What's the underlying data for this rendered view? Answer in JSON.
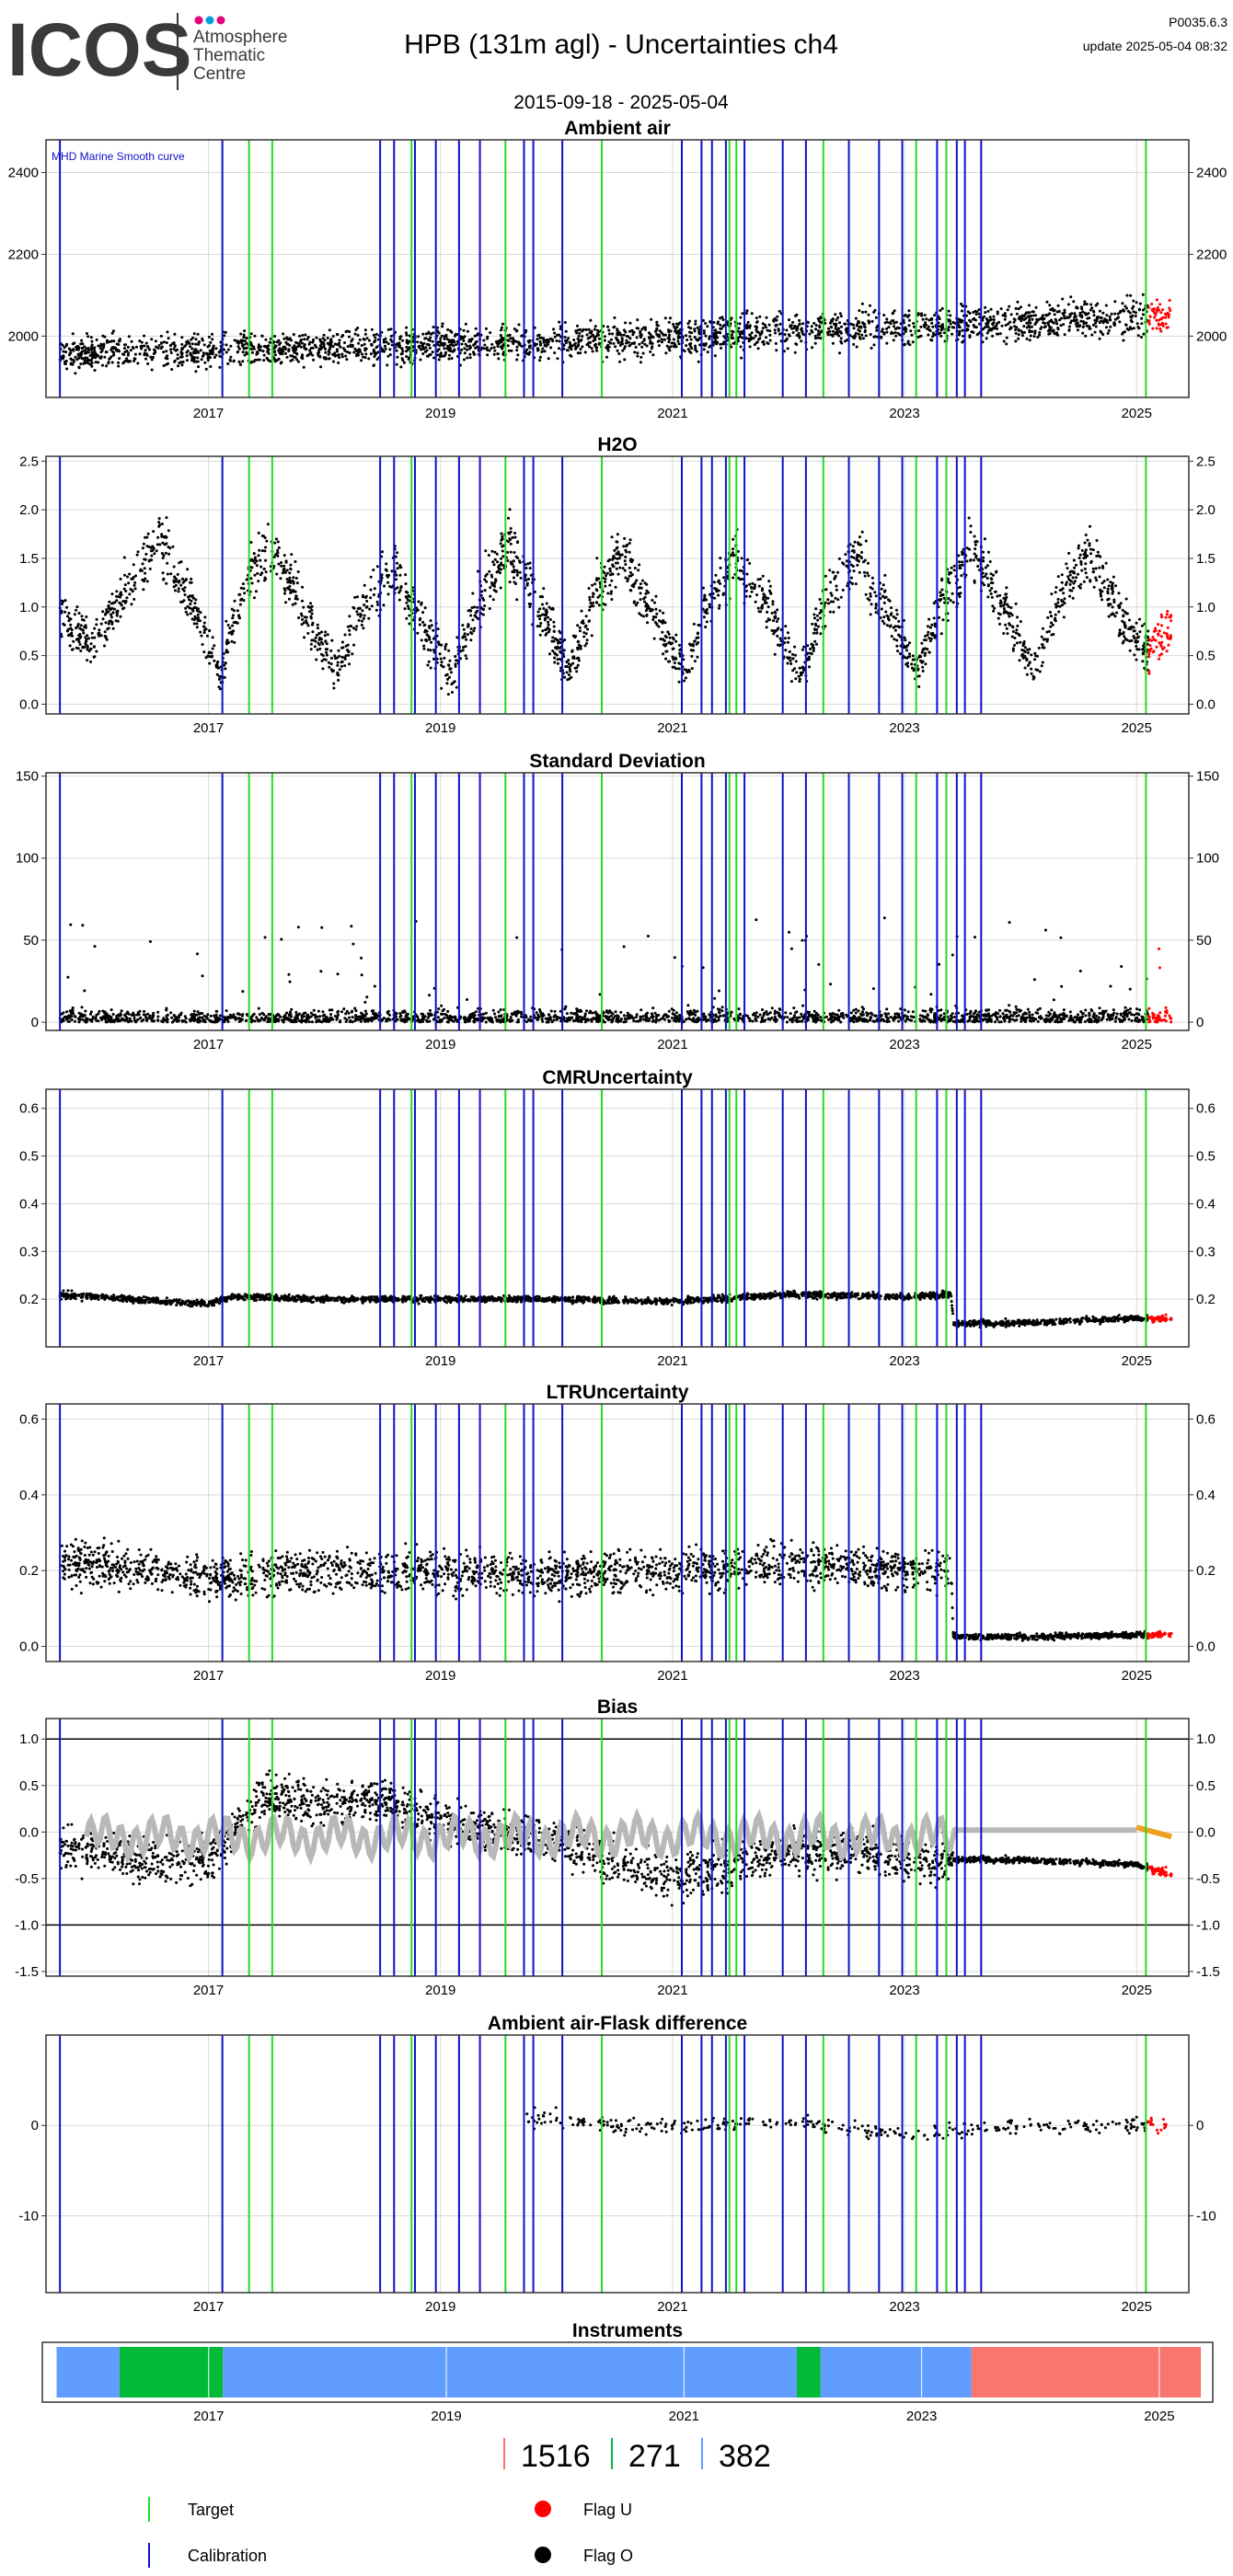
{
  "header": {
    "logo_text": "ICOS",
    "logo_subtitle": [
      "Atmosphere",
      "Thematic",
      "Centre"
    ],
    "logo_dot_colors": [
      "#e5007e",
      "#00a0e3",
      "#e5007e"
    ],
    "title": "HPB  (131m agl) - Uncertainties ch4",
    "date_range": "2015-09-18 - 2025-05-04",
    "version": "P0035.6.3",
    "update": "update  2025-05-04 08:32"
  },
  "colors": {
    "calibration": "#1010c8",
    "target": "#22dd22",
    "flag_u": "#ff0000",
    "flag_o": "#000000",
    "reference_curve": "#b8b8b8",
    "bias_recent": "#f0a020",
    "grid": "#d9d9d9"
  },
  "events": {
    "calibration_years": [
      2015.72,
      2017.12,
      2018.48,
      2018.6,
      2018.78,
      2018.96,
      2019.16,
      2019.34,
      2019.72,
      2019.8,
      2020.05,
      2021.08,
      2021.25,
      2021.34,
      2021.46,
      2021.62,
      2021.95,
      2022.15,
      2022.52,
      2022.78,
      2022.98,
      2023.28,
      2023.45,
      2023.52,
      2023.66
    ],
    "target_years": [
      2017.35,
      2017.55,
      2018.75,
      2019.56,
      2020.39,
      2021.49,
      2021.55,
      2022.3,
      2023.1,
      2023.36,
      2025.08
    ]
  },
  "chart_data": [
    {
      "id": "ambient",
      "type": "scatter",
      "title": "Ambient air",
      "annotation": "MHD Marine Smooth curve",
      "xlim": [
        2015.6,
        2025.45
      ],
      "x_ticks": [
        "2017",
        "2019",
        "2021",
        "2023",
        "2025"
      ],
      "ylim": [
        1850,
        2480
      ],
      "y_ticks": [
        2000,
        2200,
        2400
      ],
      "y_tick_labels": [
        "2000",
        "2200",
        "2400"
      ],
      "data_start": 2015.72,
      "data_end": 2025.3,
      "flag_u_start": 2025.1,
      "grid": true,
      "series": [
        {
          "x": [
            2015.75,
            2016.0,
            2016.5,
            2017.0,
            2017.5,
            2018.0,
            2018.5,
            2019.0,
            2019.5,
            2020.0,
            2020.5,
            2021.0,
            2021.5,
            2022.0,
            2022.5,
            2023.0,
            2023.5,
            2024.0,
            2024.5,
            2025.0,
            2025.3
          ],
          "y": [
            1955,
            1960,
            1962,
            1965,
            1968,
            1972,
            1975,
            1978,
            1982,
            1985,
            1990,
            1995,
            2005,
            2015,
            2020,
            2025,
            2030,
            2035,
            2040,
            2045,
            2050
          ],
          "spread": [
            55,
            60,
            60,
            65,
            60,
            60,
            65,
            60,
            65,
            60,
            65,
            65,
            70,
            65,
            65,
            70,
            65,
            60,
            65,
            70,
            60
          ]
        }
      ]
    },
    {
      "id": "h2o",
      "type": "scatter",
      "title": "H2O",
      "xlim": [
        2015.6,
        2025.45
      ],
      "x_ticks": [
        "2017",
        "2019",
        "2021",
        "2023",
        "2025"
      ],
      "ylim": [
        -0.1,
        2.55
      ],
      "y_ticks": [
        0,
        0.5,
        1,
        1.5,
        2,
        2.5
      ],
      "y_tick_labels": [
        "0.0",
        "0.5",
        "1.0",
        "1.5",
        "2.0",
        "2.5"
      ],
      "data_start": 2015.72,
      "data_end": 2025.3,
      "flag_u_start": 2025.1,
      "grid": true,
      "series": [
        {
          "x": [
            2015.72,
            2016.0,
            2016.3,
            2016.58,
            2016.9,
            2017.1,
            2017.3,
            2017.55,
            2017.9,
            2018.1,
            2018.3,
            2018.6,
            2018.9,
            2019.1,
            2019.3,
            2019.58,
            2019.9,
            2020.1,
            2020.3,
            2020.55,
            2020.9,
            2021.1,
            2021.3,
            2021.55,
            2021.9,
            2022.1,
            2022.3,
            2022.58,
            2022.9,
            2023.1,
            2023.3,
            2023.58,
            2023.9,
            2024.1,
            2024.3,
            2024.58,
            2024.9,
            2025.1,
            2025.3
          ],
          "y": [
            0.95,
            0.6,
            1.2,
            1.7,
            0.9,
            0.3,
            1.2,
            1.6,
            0.8,
            0.35,
            0.9,
            1.4,
            0.7,
            0.3,
            1.0,
            1.65,
            0.9,
            0.35,
            1.0,
            1.55,
            0.8,
            0.3,
            1.0,
            1.55,
            0.8,
            0.3,
            1.0,
            1.55,
            0.8,
            0.35,
            1.0,
            1.6,
            0.9,
            0.35,
            1.0,
            1.6,
            0.8,
            0.55,
            0.8
          ],
          "spread": [
            0.35,
            0.35,
            0.4,
            0.45,
            0.4,
            0.3,
            0.4,
            0.45,
            0.4,
            0.3,
            0.4,
            0.45,
            0.4,
            0.3,
            0.4,
            0.45,
            0.4,
            0.3,
            0.4,
            0.45,
            0.4,
            0.3,
            0.4,
            0.45,
            0.4,
            0.3,
            0.4,
            0.45,
            0.4,
            0.3,
            0.4,
            0.45,
            0.4,
            0.3,
            0.4,
            0.45,
            0.4,
            0.35,
            0.35
          ]
        }
      ]
    },
    {
      "id": "stdev",
      "type": "scatter",
      "title": "Standard Deviation",
      "xlim": [
        2015.6,
        2025.45
      ],
      "x_ticks": [
        "2017",
        "2019",
        "2021",
        "2023",
        "2025"
      ],
      "ylim": [
        -5,
        152
      ],
      "y_ticks": [
        0,
        50,
        100,
        150
      ],
      "y_tick_labels": [
        "0",
        "50",
        "100",
        "150"
      ],
      "data_start": 2015.72,
      "data_end": 2025.3,
      "flag_u_start": 2025.1,
      "grid": true,
      "series": [
        {
          "x": [
            2015.72,
            2025.3
          ],
          "y": [
            8,
            10
          ],
          "spread": [
            10,
            12
          ]
        }
      ]
    },
    {
      "id": "cmr",
      "type": "scatter",
      "title": "CMRUncertainty",
      "xlim": [
        2015.6,
        2025.45
      ],
      "x_ticks": [
        "2017",
        "2019",
        "2021",
        "2023",
        "2025"
      ],
      "ylim": [
        0.1,
        0.64
      ],
      "y_ticks": [
        0.2,
        0.3,
        0.4,
        0.5,
        0.6
      ],
      "y_tick_labels": [
        "0.2",
        "0.3",
        "0.4",
        "0.5",
        "0.6"
      ],
      "data_start": 2015.72,
      "data_end": 2025.3,
      "flag_u_start": 2025.1,
      "grid": true,
      "series": [
        {
          "x": [
            2015.72,
            2016.0,
            2017.0,
            2017.2,
            2018.0,
            2019.0,
            2020.0,
            2021.0,
            2022.0,
            2023.0,
            2023.4,
            2023.42,
            2024.0,
            2025.0,
            2025.3
          ],
          "y": [
            0.21,
            0.205,
            0.19,
            0.205,
            0.2,
            0.2,
            0.2,
            0.195,
            0.21,
            0.205,
            0.21,
            0.148,
            0.15,
            0.16,
            0.16
          ],
          "spread": [
            0.015,
            0.01,
            0.01,
            0.01,
            0.01,
            0.01,
            0.01,
            0.01,
            0.01,
            0.01,
            0.01,
            0.01,
            0.01,
            0.01,
            0.01
          ]
        }
      ]
    },
    {
      "id": "ltr",
      "type": "scatter",
      "title": "LTRUncertainty",
      "xlim": [
        2015.6,
        2025.45
      ],
      "x_ticks": [
        "2017",
        "2019",
        "2021",
        "2023",
        "2025"
      ],
      "ylim": [
        -0.04,
        0.64
      ],
      "y_ticks": [
        0,
        0.2,
        0.4,
        0.6
      ],
      "y_tick_labels": [
        "0.0",
        "0.2",
        "0.4",
        "0.6"
      ],
      "data_start": 2015.72,
      "data_end": 2025.3,
      "flag_u_start": 2025.1,
      "grid": true,
      "series": [
        {
          "x": [
            2015.72,
            2016.5,
            2017.0,
            2018.0,
            2019.0,
            2020.0,
            2021.0,
            2022.0,
            2023.0,
            2023.4,
            2023.42,
            2024.0,
            2025.0,
            2025.3
          ],
          "y": [
            0.22,
            0.2,
            0.18,
            0.2,
            0.2,
            0.19,
            0.2,
            0.22,
            0.2,
            0.2,
            0.025,
            0.025,
            0.03,
            0.03
          ],
          "spread": [
            0.09,
            0.08,
            0.08,
            0.08,
            0.08,
            0.08,
            0.08,
            0.08,
            0.08,
            0.08,
            0.012,
            0.012,
            0.012,
            0.012
          ]
        }
      ]
    },
    {
      "id": "bias",
      "type": "scatter",
      "title": "Bias",
      "xlim": [
        2015.6,
        2025.45
      ],
      "x_ticks": [
        "2017",
        "2019",
        "2021",
        "2023",
        "2025"
      ],
      "ylim": [
        -1.55,
        1.22
      ],
      "y_ticks": [
        -1.5,
        -1,
        -0.5,
        0,
        0.5,
        1
      ],
      "y_tick_labels": [
        "-1.5",
        "-1.0",
        "-0.5",
        "0.0",
        "0.5",
        "1.0"
      ],
      "hlines": [
        1,
        -1
      ],
      "data_start": 2015.72,
      "data_end": 2025.3,
      "flag_u_start": 2025.1,
      "grid": true,
      "series": [
        {
          "x": [
            2015.72,
            2016.5,
            2017.0,
            2017.5,
            2018.0,
            2018.5,
            2019.0,
            2019.5,
            2020.0,
            2020.5,
            2021.0,
            2021.5,
            2022.0,
            2022.5,
            2023.0,
            2023.4,
            2023.42,
            2024.0,
            2025.0,
            2025.3
          ],
          "y": [
            -0.15,
            -0.3,
            -0.3,
            0.4,
            0.3,
            0.35,
            0.1,
            0.0,
            -0.1,
            -0.3,
            -0.5,
            -0.35,
            -0.2,
            -0.2,
            -0.3,
            -0.3,
            -0.3,
            -0.3,
            -0.35,
            -0.45
          ],
          "spread": [
            0.35,
            0.35,
            0.4,
            0.35,
            0.35,
            0.35,
            0.35,
            0.35,
            0.35,
            0.35,
            0.4,
            0.35,
            0.35,
            0.35,
            0.35,
            0.35,
            0.05,
            0.05,
            0.05,
            0.08
          ]
        }
      ]
    },
    {
      "id": "flask",
      "type": "scatter",
      "title": "Ambient air-Flask difference",
      "xlim": [
        2015.6,
        2025.45
      ],
      "x_ticks": [
        "2017",
        "2019",
        "2021",
        "2023",
        "2025"
      ],
      "ylim": [
        -18.5,
        10
      ],
      "y_ticks": [
        -10,
        0
      ],
      "y_tick_labels": [
        "-10",
        "0"
      ],
      "data_start": 2019.7,
      "data_end": 2025.3,
      "flag_u_start": 2025.1,
      "grid": true,
      "series": [
        {
          "x": [
            2019.7,
            2020.2,
            2020.5,
            2021.0,
            2022.0,
            2023.0,
            2024.0,
            2025.0,
            2025.3
          ],
          "y": [
            1,
            0.5,
            -0.2,
            0,
            0.5,
            -1,
            0,
            0,
            0
          ],
          "spread": [
            1.5,
            1.5,
            1.2,
            1.2,
            1.2,
            1.2,
            1.2,
            1.2,
            1.2
          ]
        }
      ]
    },
    {
      "id": "instruments",
      "type": "bar",
      "title": "Instruments",
      "xlim": [
        2015.6,
        2025.45
      ],
      "x_ticks": [
        "2017",
        "2019",
        "2021",
        "2023",
        "2025"
      ],
      "segments": [
        {
          "instrument": "382",
          "start": 2015.72,
          "end": 2016.25,
          "color": "#619cff"
        },
        {
          "instrument": "271",
          "start": 2016.25,
          "end": 2017.12,
          "color": "#00ba38"
        },
        {
          "instrument": "382",
          "start": 2017.12,
          "end": 2021.95,
          "color": "#619cff"
        },
        {
          "instrument": "271",
          "start": 2021.95,
          "end": 2022.15,
          "color": "#00ba38"
        },
        {
          "instrument": "382",
          "start": 2022.15,
          "end": 2023.42,
          "color": "#619cff"
        },
        {
          "instrument": "1516",
          "start": 2023.42,
          "end": 2025.35,
          "color": "#f8766d"
        }
      ],
      "legend": [
        {
          "label": "1516",
          "color": "#f8766d"
        },
        {
          "label": "271",
          "color": "#00ba38"
        },
        {
          "label": "382",
          "color": "#619cff"
        }
      ]
    }
  ],
  "legend": {
    "target": "Target",
    "calibration": "Calibration",
    "flag_u": "Flag U",
    "flag_o": "Flag O"
  }
}
